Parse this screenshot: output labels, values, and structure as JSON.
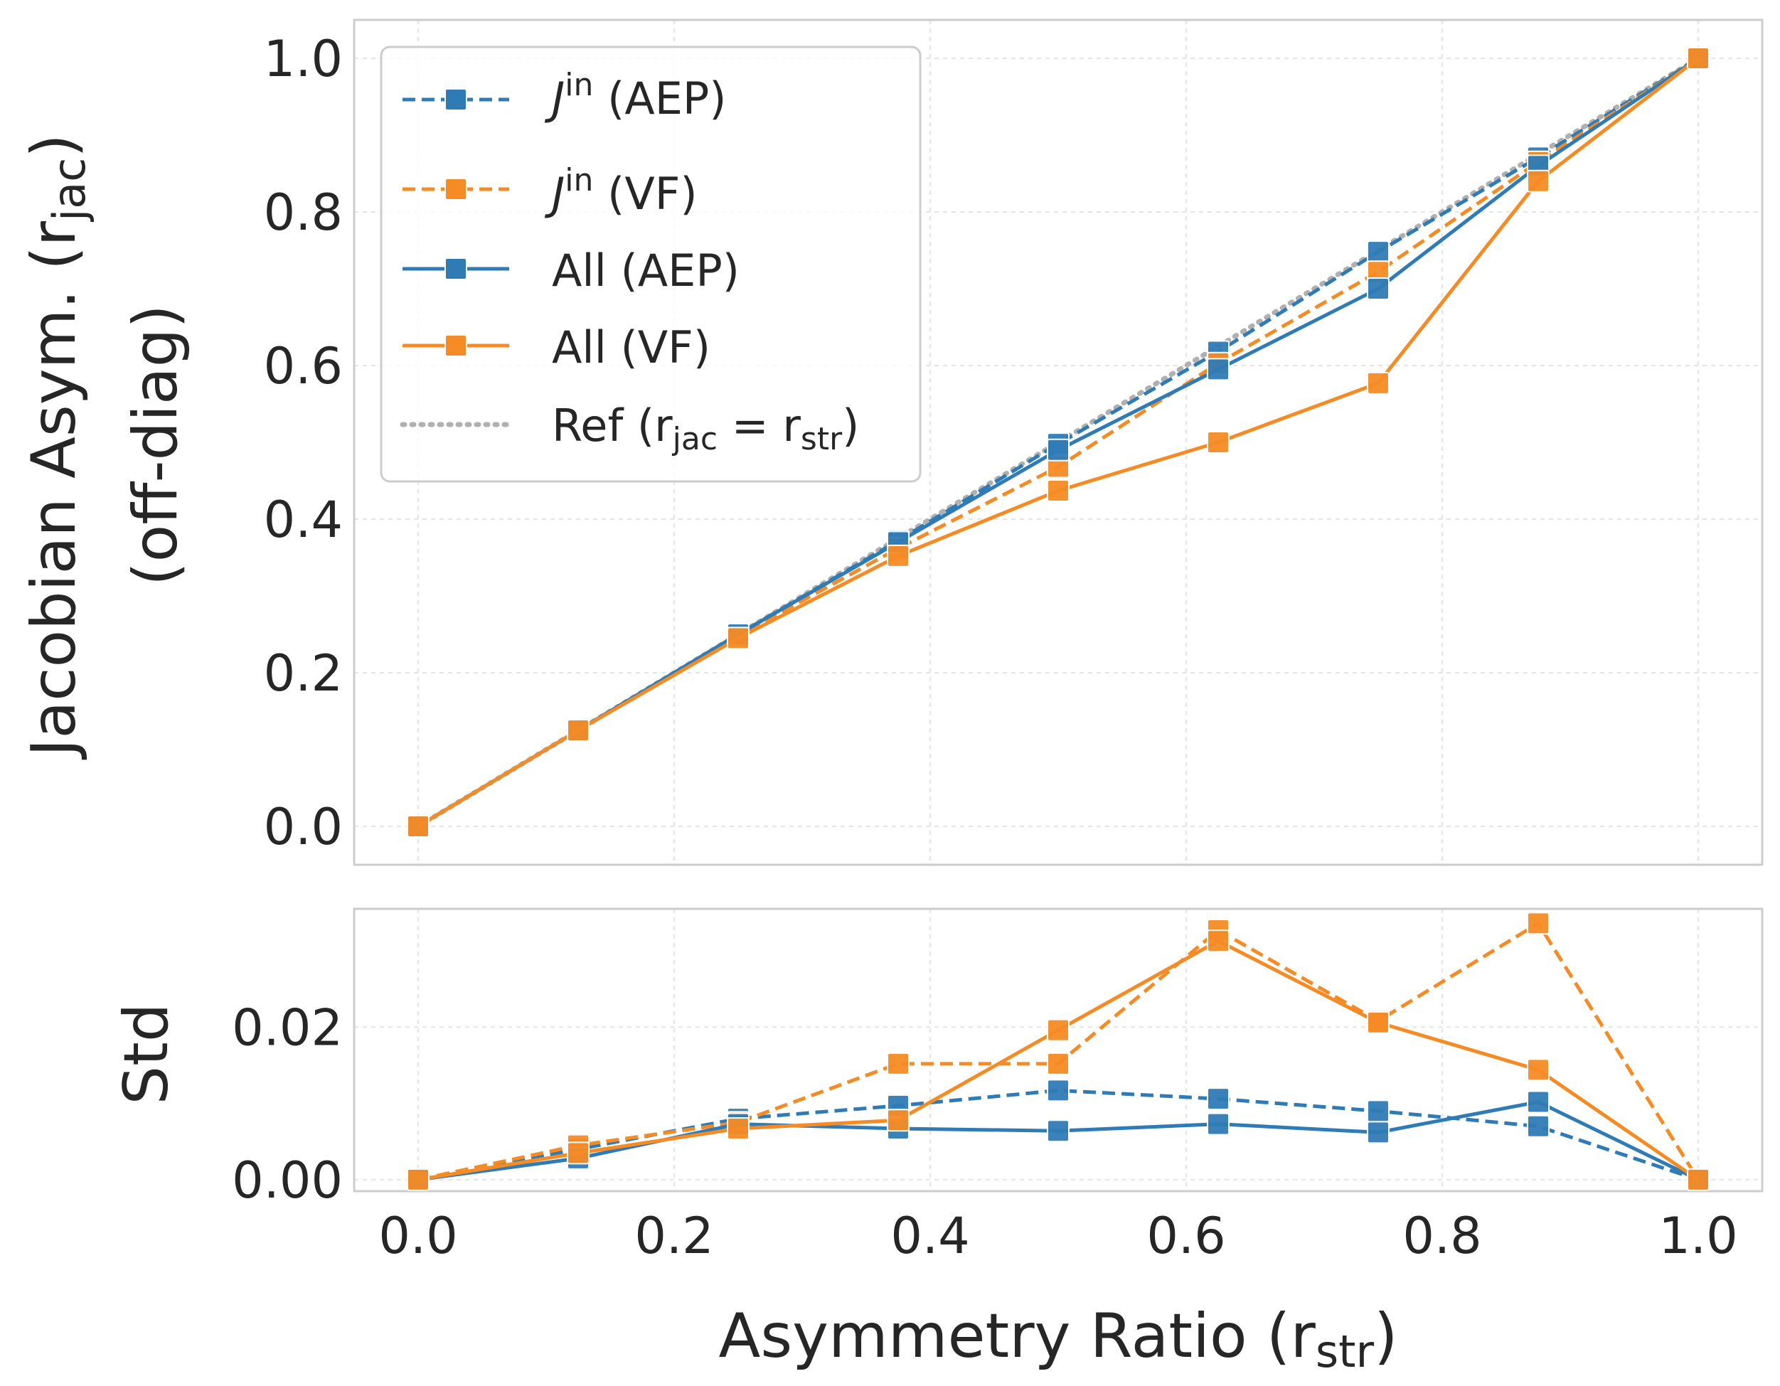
{
  "chart_data": [
    {
      "type": "line",
      "panel": "top",
      "xlabel": "",
      "ylabel_line1": "Jacobian Asym. (r",
      "ylabel_sub": "jac",
      "ylabel_close": ")",
      "ylabel_line2": "(off-diag)",
      "xlim": [
        -0.05,
        1.05
      ],
      "ylim": [
        -0.05,
        1.05
      ],
      "xticks": [
        0.0,
        0.2,
        0.4,
        0.6,
        0.8,
        1.0
      ],
      "yticks": [
        0.0,
        0.2,
        0.4,
        0.6,
        0.8,
        1.0
      ],
      "ytick_labels": [
        "0.0",
        "0.2",
        "0.4",
        "0.6",
        "0.8",
        "1.0"
      ],
      "grid": true,
      "legend_position": "top-left",
      "x": [
        0.0,
        0.125,
        0.25,
        0.375,
        0.5,
        0.625,
        0.75,
        0.875,
        1.0
      ],
      "series": [
        {
          "key": "jin_aep",
          "legend_base": "J",
          "legend_sup": "in",
          "legend_rest": " (AEP)",
          "color": "#2f7bb5",
          "dash": true,
          "values": [
            0.0,
            0.125,
            0.25,
            0.372,
            0.498,
            0.618,
            0.748,
            0.871,
            1.0
          ]
        },
        {
          "key": "jin_vf",
          "legend_base": "J",
          "legend_sup": "in",
          "legend_rest": " (VF)",
          "color": "#f58b25",
          "dash": true,
          "values": [
            0.0,
            0.125,
            0.248,
            0.362,
            0.468,
            0.603,
            0.722,
            0.865,
            1.0
          ]
        },
        {
          "key": "all_aep",
          "legend_base": "All (AEP)",
          "color": "#2f7bb5",
          "dash": false,
          "values": [
            0.0,
            0.125,
            0.25,
            0.37,
            0.49,
            0.595,
            0.7,
            0.86,
            1.0
          ]
        },
        {
          "key": "all_vf",
          "legend_base": "All (VF)",
          "color": "#f58b25",
          "dash": false,
          "values": [
            0.0,
            0.125,
            0.245,
            0.352,
            0.437,
            0.5,
            0.577,
            0.84,
            1.0
          ]
        }
      ],
      "reference": {
        "legend_base": "Ref (r",
        "legend_sub1": "jac",
        "legend_eq": " = r",
        "legend_sub2": "str",
        "legend_close": ")",
        "color": "#b0b0b0",
        "x": [
          0.0,
          1.0
        ],
        "values": [
          0.0,
          1.0
        ]
      }
    },
    {
      "type": "line",
      "panel": "bottom",
      "xlabel": "Asymmetry Ratio (r",
      "xlabel_sub": "str",
      "xlabel_close": ")",
      "ylabel": "Std",
      "xlim": [
        -0.05,
        1.05
      ],
      "ylim": [
        -0.0015,
        0.0355
      ],
      "xticks": [
        0.0,
        0.2,
        0.4,
        0.6,
        0.8,
        1.0
      ],
      "xtick_labels": [
        "0.0",
        "0.2",
        "0.4",
        "0.6",
        "0.8",
        "1.0"
      ],
      "yticks": [
        0.0,
        0.02
      ],
      "ytick_labels": [
        "0.00",
        "0.02"
      ],
      "grid": true,
      "x": [
        0.0,
        0.125,
        0.25,
        0.375,
        0.5,
        0.625,
        0.75,
        0.875,
        1.0
      ],
      "series": [
        {
          "key": "jin_aep",
          "color": "#2f7bb5",
          "dash": true,
          "values": [
            0.0,
            0.004,
            0.008,
            0.0097,
            0.0117,
            0.0106,
            0.009,
            0.007,
            0.0
          ]
        },
        {
          "key": "jin_vf",
          "color": "#f58b25",
          "dash": true,
          "values": [
            0.0,
            0.0045,
            0.0075,
            0.0152,
            0.0152,
            0.0327,
            0.0208,
            0.0336,
            0.0
          ]
        },
        {
          "key": "all_aep",
          "color": "#2f7bb5",
          "dash": false,
          "values": [
            0.0,
            0.0028,
            0.0073,
            0.0067,
            0.0064,
            0.0073,
            0.0062,
            0.0102,
            0.0
          ]
        },
        {
          "key": "all_vf",
          "color": "#f58b25",
          "dash": false,
          "values": [
            0.0,
            0.0035,
            0.0067,
            0.0078,
            0.0196,
            0.0313,
            0.0206,
            0.0144,
            0.0
          ]
        }
      ]
    }
  ]
}
